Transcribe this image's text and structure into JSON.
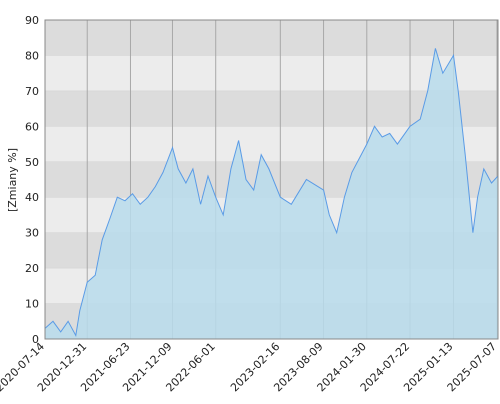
{
  "chart_data": {
    "type": "area",
    "y_label": "[Zmiany %]",
    "x": [
      "2020-07-14",
      "2020-08-15",
      "2020-09-15",
      "2020-10-15",
      "2020-11-15",
      "2020-12-01",
      "2020-12-31",
      "2021-02-01",
      "2021-03-01",
      "2021-04-01",
      "2021-05-01",
      "2021-06-01",
      "2021-07-01",
      "2021-08-01",
      "2021-09-01",
      "2021-10-01",
      "2021-11-01",
      "2021-12-09",
      "2022-01-01",
      "2022-02-01",
      "2022-03-01",
      "2022-04-01",
      "2022-05-01",
      "2022-06-01",
      "2022-07-01",
      "2022-08-01",
      "2022-09-01",
      "2022-10-01",
      "2022-11-01",
      "2022-12-01",
      "2023-01-01",
      "2023-02-16",
      "2023-04-01",
      "2023-06-01",
      "2023-08-09",
      "2023-09-01",
      "2023-10-01",
      "2023-11-01",
      "2023-12-01",
      "2024-01-30",
      "2024-03-01",
      "2024-04-01",
      "2024-05-01",
      "2024-06-01",
      "2024-07-22",
      "2024-09-01",
      "2024-10-01",
      "2024-11-01",
      "2024-12-01",
      "2025-01-13",
      "2025-02-01",
      "2025-03-01",
      "2025-04-01",
      "2025-04-20",
      "2025-05-15",
      "2025-06-15",
      "2025-07-11"
    ],
    "series": [
      {
        "color": "#5a9be6",
        "fill": "#b9dcec",
        "values": [
          3,
          5,
          2,
          5,
          1,
          8,
          16,
          18,
          28,
          34,
          40,
          39,
          41,
          38,
          40,
          43,
          47,
          54,
          48,
          44,
          48,
          38,
          46,
          40,
          35,
          48,
          56,
          45,
          42,
          52,
          48,
          40,
          38,
          45,
          42,
          35,
          30,
          40,
          47,
          55,
          60,
          57,
          58,
          55,
          60,
          62,
          70,
          82,
          75,
          80,
          70,
          52,
          30,
          40,
          48,
          44,
          46
        ]
      }
    ],
    "xlim": [
      "2020-07-14",
      "2025-07-11"
    ],
    "xticks": [
      "2020-07-14",
      "2020-12-31",
      "2021-06-23",
      "2021-12-09",
      "2022-06-01",
      "2023-02-16",
      "2023-08-09",
      "2024-01-30",
      "2024-07-22",
      "2025-01-13",
      "2025-07-07"
    ],
    "ylim": [
      0,
      90
    ],
    "yticks": [
      0,
      10,
      20,
      30,
      40,
      50,
      60,
      70,
      80,
      90
    ],
    "grid": true,
    "bands": [
      "#dcdcdc",
      "#ececec"
    ]
  }
}
